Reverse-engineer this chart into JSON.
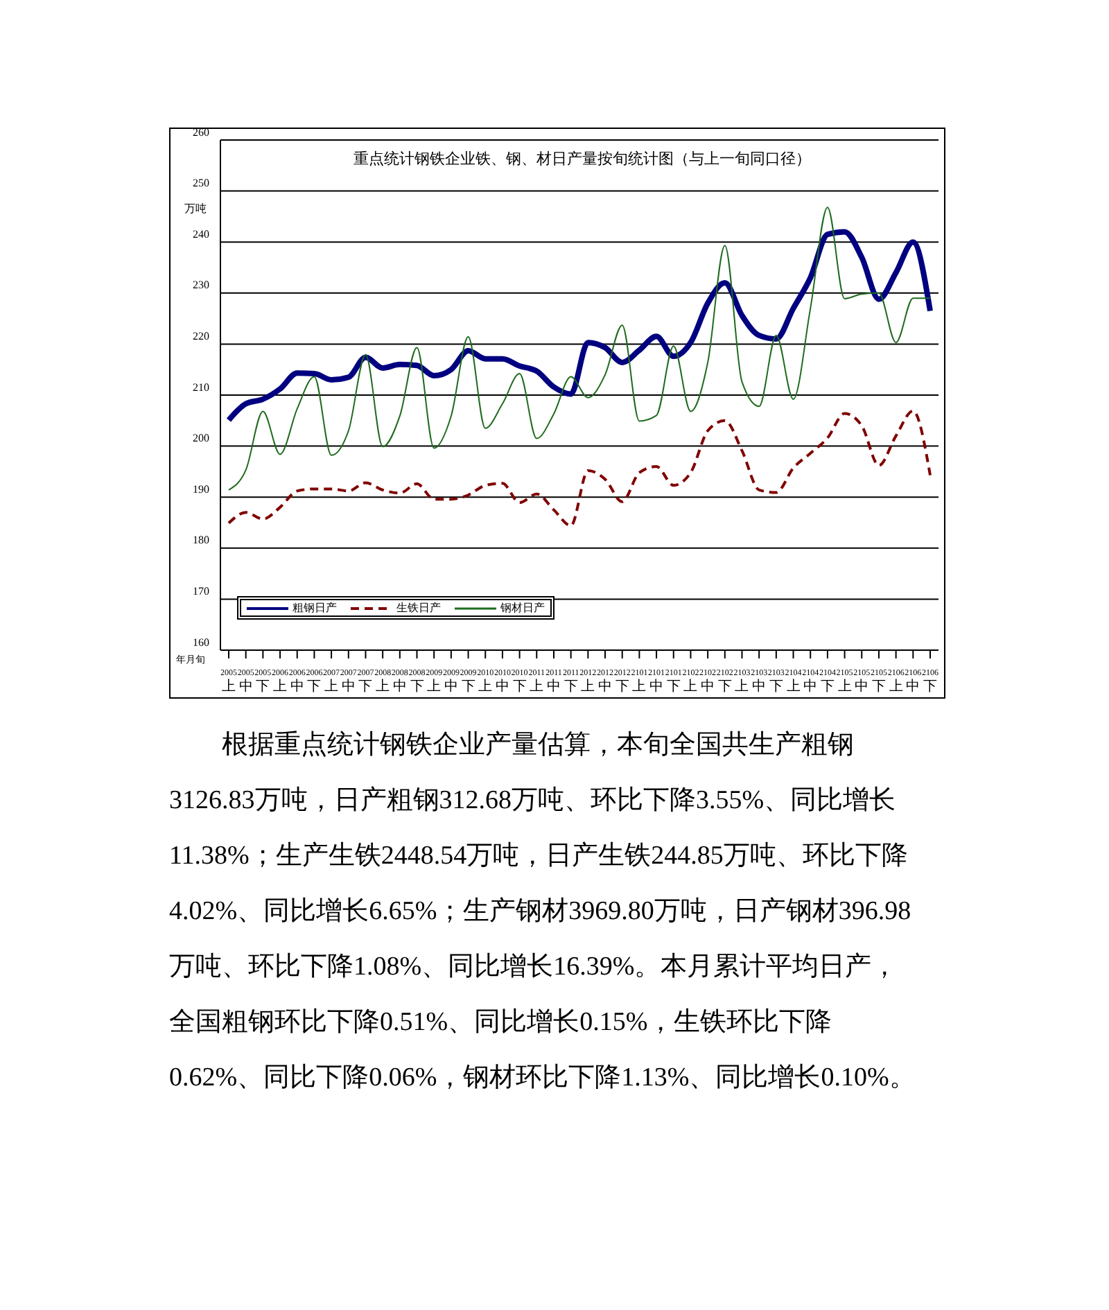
{
  "chart_data": {
    "type": "line",
    "title": "重点统计钢铁企业铁、钢、材日产量按旬统计图（与上一旬同口径）",
    "ylabel": "万吨",
    "xlabel": "年月旬",
    "categories": [
      "2005\n上",
      "2005\n中",
      "2005\n下",
      "2006\n上",
      "2006\n中",
      "2006\n下",
      "2007\n上",
      "2007\n中",
      "2007\n下",
      "2008\n上",
      "2008\n中",
      "2008\n下",
      "2009\n上",
      "2009\n中",
      "2009\n下",
      "2010\n上",
      "2010\n中",
      "2010\n下",
      "2011\n上",
      "2011\n中",
      "2011\n下",
      "2012\n上",
      "2012\n中",
      "2012\n下",
      "2101\n上",
      "2101\n中",
      "2101\n下",
      "2102\n上",
      "2102\n中",
      "2102\n下",
      "2103\n上",
      "2103\n中",
      "2103\n下",
      "2104\n上",
      "2104\n中",
      "2104\n下",
      "2105\n上",
      "2105\n中",
      "2105\n下",
      "2106\n上",
      "2106\n中",
      "2106\n下"
    ],
    "series": [
      {
        "name": "粗钢日产",
        "color": "#000080",
        "line_style": "solid",
        "values": [
          205.1,
          208.3,
          209.2,
          211.2,
          214.3,
          214.2,
          213,
          213.5,
          217.4,
          215.3,
          216,
          215.8,
          213.8,
          215,
          218.7,
          217.1,
          217.1,
          215.7,
          214.7,
          211.6,
          210.2,
          220.3,
          219.3,
          216.4,
          218.8,
          221.5,
          217.6,
          220.3,
          228,
          232,
          225.6,
          221.7,
          221,
          227,
          233,
          241.5,
          242,
          237,
          228.8,
          234,
          240,
          226.5
        ]
      },
      {
        "name": "生铁日产",
        "color": "#800000",
        "line_style": "dashed",
        "values": [
          184.9,
          187,
          185.7,
          188,
          191.2,
          191.6,
          191.6,
          191.2,
          192.8,
          191.4,
          190.8,
          192.6,
          189.6,
          189.6,
          190.4,
          192.3,
          192.7,
          188.9,
          190.6,
          187.5,
          184.4,
          195.2,
          193.5,
          189.1,
          194.8,
          196,
          192.3,
          194.8,
          203,
          205,
          199.1,
          191.4,
          190.9,
          195.7,
          198.6,
          201.6,
          206.4,
          204,
          196.2,
          202,
          206.9,
          194.3
        ]
      },
      {
        "name": "钢材日产",
        "color": "#1e6b1e",
        "line_style": "solid",
        "values": [
          191.4,
          195.3,
          206.8,
          198.4,
          207.3,
          213.6,
          198.2,
          203,
          217.9,
          199.9,
          205.9,
          219.3,
          199.6,
          205.9,
          221.4,
          203.5,
          208.3,
          214.2,
          201.5,
          206.3,
          213.6,
          209.5,
          214,
          223.7,
          204.9,
          206,
          219.6,
          206.8,
          216.4,
          239.3,
          212.6,
          207.8,
          221.7,
          209.2,
          227,
          246.8,
          228.9,
          229.8,
          230,
          220.3,
          229,
          229
        ]
      }
    ],
    "ylim": [
      160,
      260
    ],
    "yticks": [
      160,
      170,
      180,
      190,
      200,
      210,
      220,
      230,
      240,
      250,
      260
    ],
    "grid": "y",
    "legend": "bottom left",
    "marker": "none",
    "annotations": [
      "根据重点统计钢铁企业产量估算，本旬全国共生产粗钢3126.83万吨，日产粗钢312.68万吨、环比下降3.55%、同比增长11.38%；生产生铁2448.54万吨，日产生铁244.85万吨、环比下降4.02%、同比增长6.65%；生产钢材3969.80万吨，日产钢材396.98万吨、环比下降1.08%、同比增长16.39%。本月累计平均日产，全国粗钢环比下降0.51%、同比增长0.15%，生铁环比下降0.62%、同比下降0.06%，钢材环比下降1.13%、同比增长0.10%。"
    ]
  }
}
